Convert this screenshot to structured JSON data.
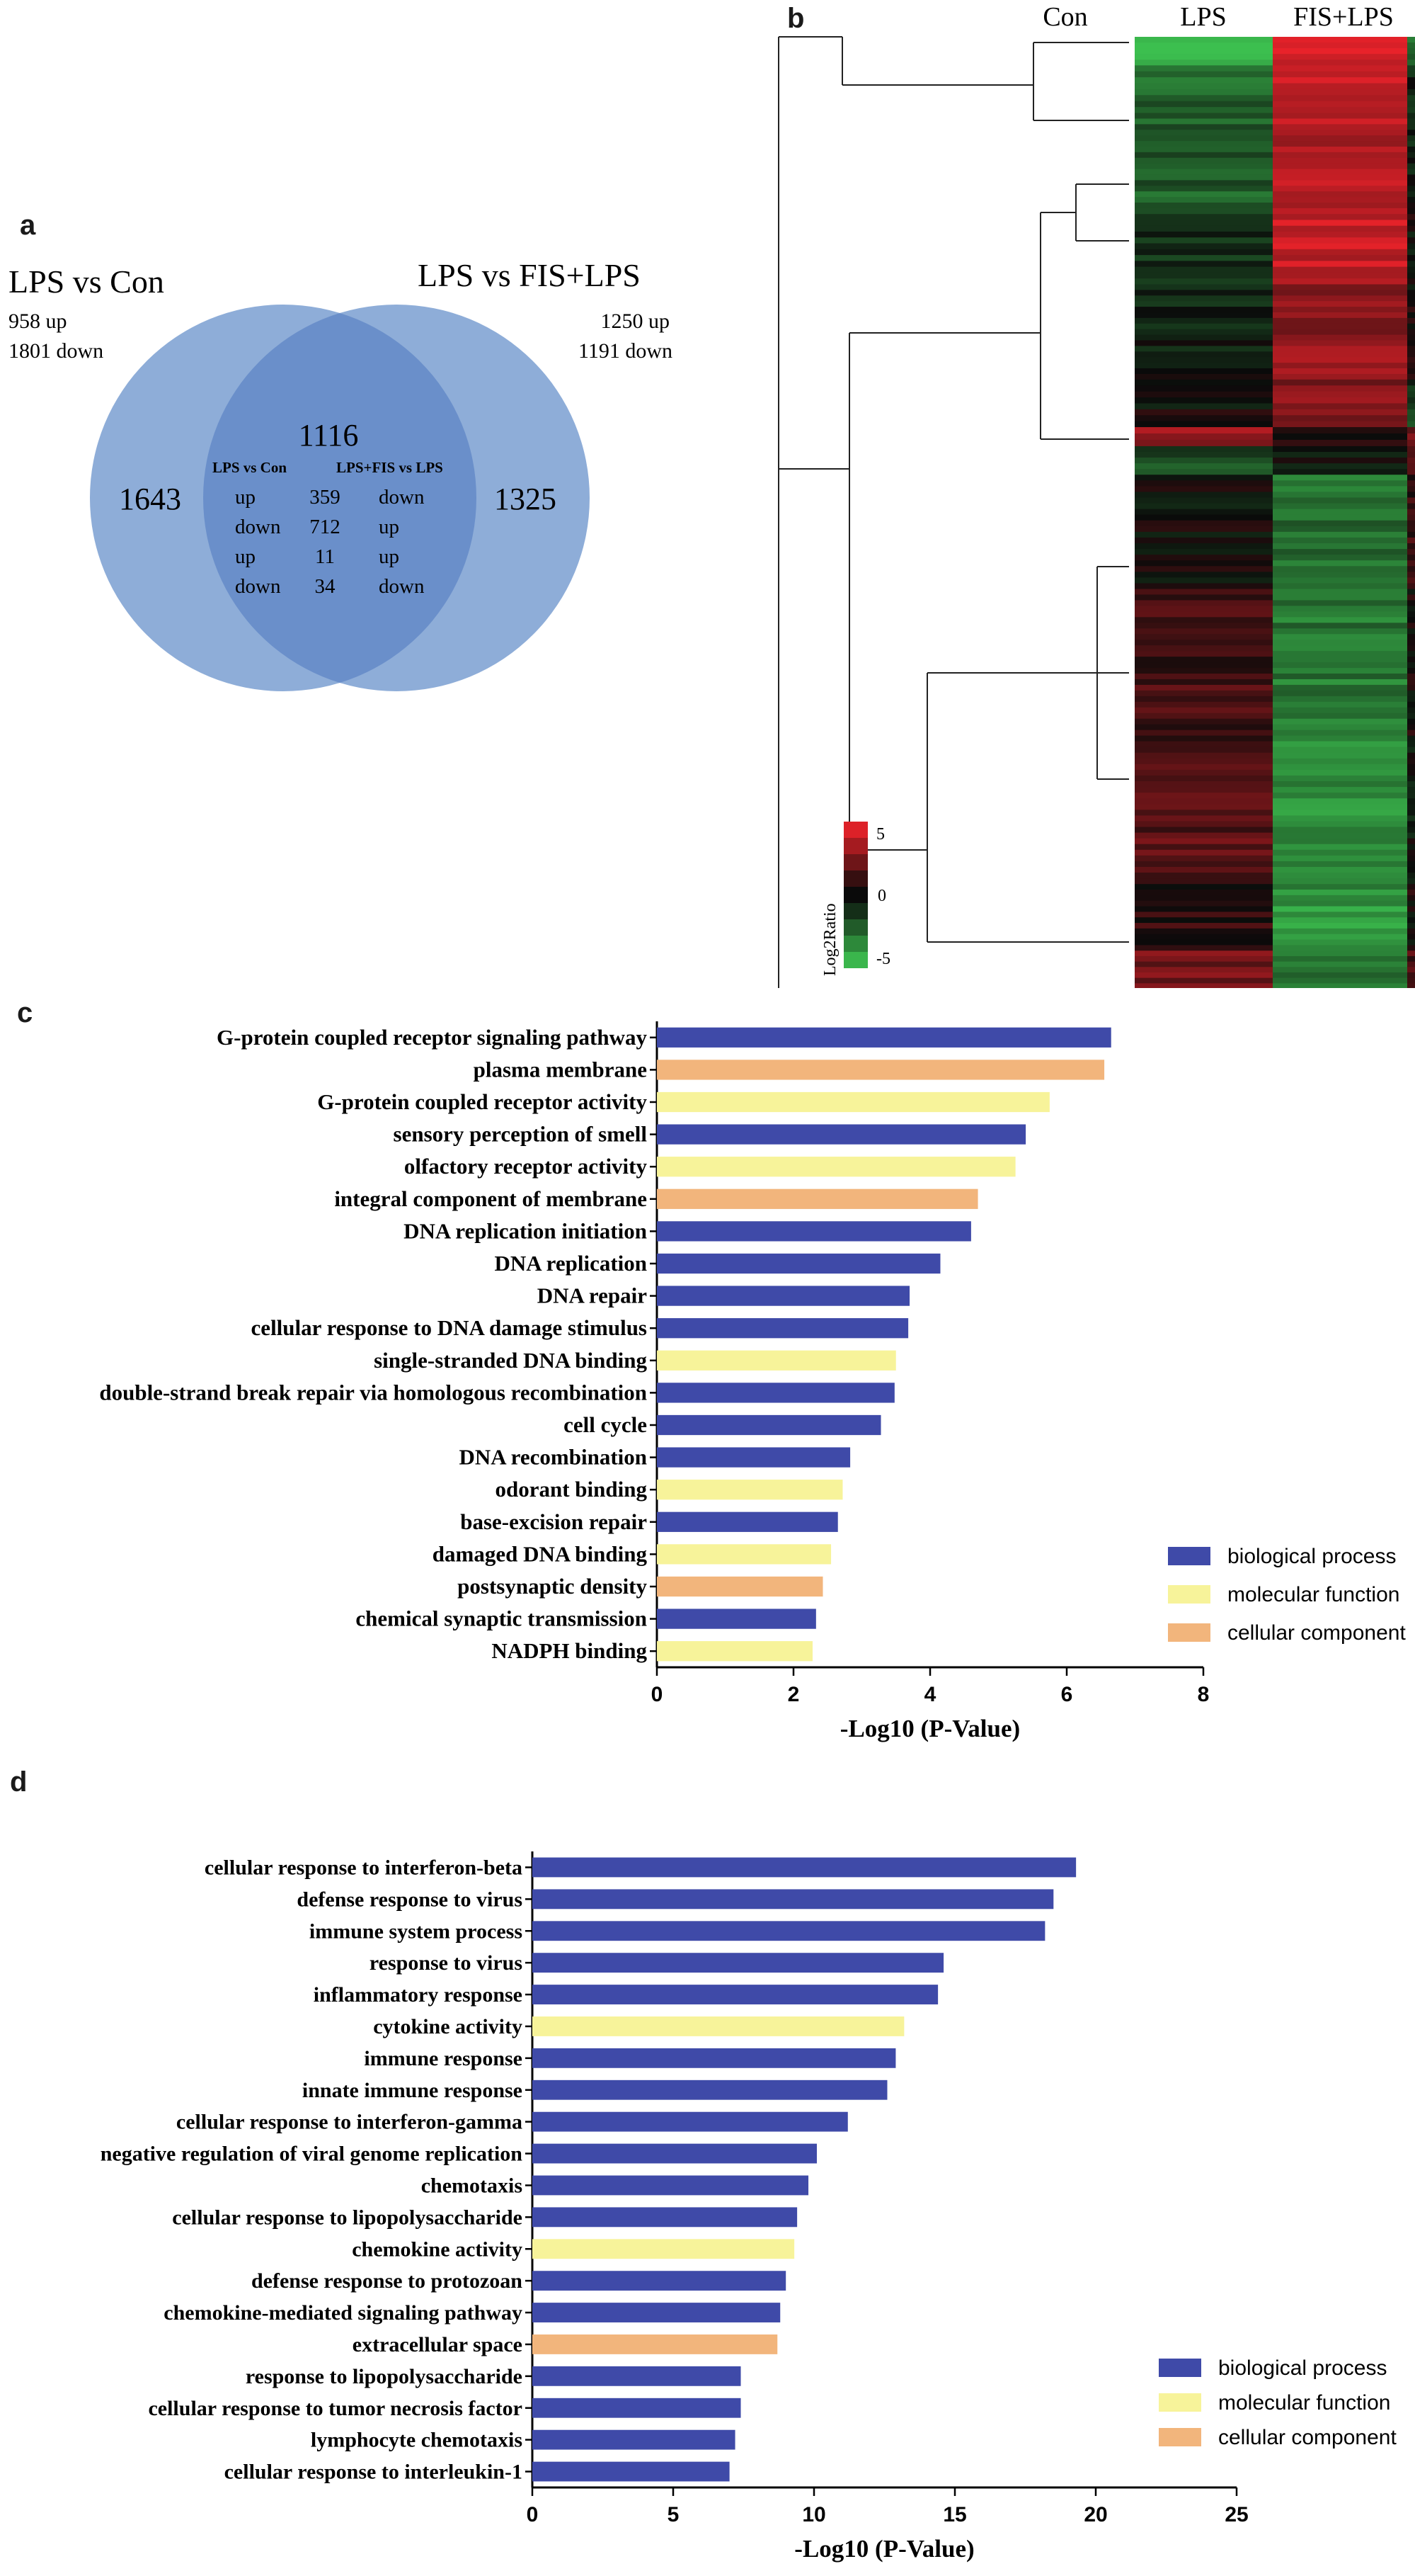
{
  "panels": {
    "a": "a",
    "b": "b",
    "c": "c",
    "d": "d"
  },
  "venn": {
    "left_title": "LPS vs Con",
    "left_up": "958 up",
    "left_down": "1801 down",
    "right_title": "LPS vs FIS+LPS",
    "right_up": "1250 up",
    "right_down": "1191 down",
    "left_only": "1643",
    "right_only": "1325",
    "overlap": "1116",
    "overlap_table": {
      "header_left": "LPS vs Con",
      "header_right": "LPS+FIS vs LPS",
      "rows": [
        {
          "left": "up",
          "count": "359",
          "right": "down"
        },
        {
          "left": "down",
          "count": "712",
          "right": "up"
        },
        {
          "left": "up",
          "count": "11",
          "right": "up"
        },
        {
          "left": "down",
          "count": "34",
          "right": "down"
        }
      ]
    },
    "colors": {
      "circle": "#8eadd8",
      "overlap": "#6a8fca"
    }
  },
  "heatmap": {
    "columns": [
      "Con",
      "LPS",
      "FIS+LPS"
    ],
    "legend_title": "Log2Ratio",
    "legend_ticks": [
      "5",
      "0",
      "-5"
    ],
    "colors": {
      "high": "#e8222a",
      "mid": "#0a0a0a",
      "low": "#3cbf4f"
    }
  },
  "chart_data": [
    {
      "type": "bar",
      "orientation": "horizontal",
      "title": "",
      "xlabel": "-Log10 (P-Value)",
      "xlim": [
        0,
        8
      ],
      "xticks": [
        "0",
        "2",
        "4",
        "6",
        "8"
      ],
      "categories": [
        "G-protein coupled receptor signaling pathway",
        "plasma membrane",
        "G-protein coupled receptor activity",
        "sensory perception of smell",
        "olfactory receptor activity",
        "integral component of membrane",
        "DNA replication initiation",
        "DNA replication",
        "DNA repair",
        "cellular response to DNA damage stimulus",
        "single-stranded DNA binding",
        "double-strand break repair via homologous recombination",
        "cell cycle",
        "DNA recombination",
        "odorant binding",
        "base-excision repair",
        "damaged DNA binding",
        "postsynaptic density",
        "chemical synaptic transmission",
        "NADPH binding"
      ],
      "values": [
        6.65,
        6.55,
        5.75,
        5.4,
        5.25,
        4.7,
        4.6,
        4.15,
        3.7,
        3.68,
        3.5,
        3.48,
        3.28,
        2.83,
        2.72,
        2.65,
        2.55,
        2.43,
        2.33,
        2.28
      ],
      "groups": [
        "bp",
        "cc",
        "mf",
        "bp",
        "mf",
        "cc",
        "bp",
        "bp",
        "bp",
        "bp",
        "mf",
        "bp",
        "bp",
        "bp",
        "mf",
        "bp",
        "mf",
        "cc",
        "bp",
        "mf"
      ],
      "legend": [
        {
          "key": "bp",
          "label": "biological process",
          "color": "#3f4aa8"
        },
        {
          "key": "mf",
          "label": "molecular function",
          "color": "#f7f39a"
        },
        {
          "key": "cc",
          "label": "cellular component",
          "color": "#f2b57c"
        }
      ],
      "legend_position": "bottom-right"
    },
    {
      "type": "bar",
      "orientation": "horizontal",
      "title": "",
      "xlabel": "-Log10 (P-Value)",
      "xlim": [
        0,
        25
      ],
      "xticks": [
        "0",
        "5",
        "10",
        "15",
        "20",
        "25"
      ],
      "categories": [
        "cellular response to interferon-beta",
        "defense response to virus",
        "immune system process",
        "response to virus",
        "inflammatory response",
        "cytokine activity",
        "immune response",
        "innate immune response",
        "cellular response to interferon-gamma",
        "negative regulation of viral genome replication",
        "chemotaxis",
        "cellular response to lipopolysaccharide",
        "chemokine activity",
        "defense response to protozoan",
        "chemokine-mediated signaling pathway",
        "extracellular space",
        "response to lipopolysaccharide",
        "cellular response to tumor necrosis factor",
        "lymphocyte chemotaxis",
        "cellular response to interleukin-1"
      ],
      "values": [
        19.3,
        18.5,
        18.2,
        14.6,
        14.4,
        13.2,
        12.9,
        12.6,
        11.2,
        10.1,
        9.8,
        9.4,
        9.3,
        9.0,
        8.8,
        8.7,
        7.4,
        7.4,
        7.2,
        7.0
      ],
      "groups": [
        "bp",
        "bp",
        "bp",
        "bp",
        "bp",
        "mf",
        "bp",
        "bp",
        "bp",
        "bp",
        "bp",
        "bp",
        "mf",
        "bp",
        "bp",
        "cc",
        "bp",
        "bp",
        "bp",
        "bp"
      ],
      "legend": [
        {
          "key": "bp",
          "label": "biological process",
          "color": "#3f4aa8"
        },
        {
          "key": "mf",
          "label": "molecular function",
          "color": "#f7f39a"
        },
        {
          "key": "cc",
          "label": "cellular component",
          "color": "#f2b57c"
        }
      ],
      "legend_position": "bottom-right"
    }
  ]
}
